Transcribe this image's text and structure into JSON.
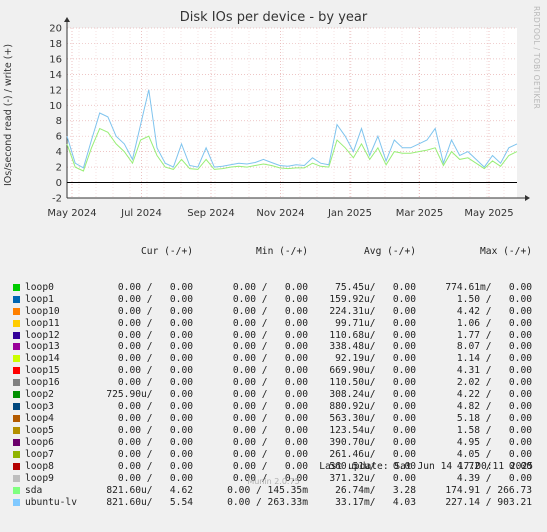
{
  "title": "Disk IOs per device - by year",
  "side_label": "RRDTOOL / TOBI OETIKER",
  "ylabel": "IOs/second read (-) / write (+)",
  "chart_data": {
    "type": "line",
    "title": "Disk IOs per device - by year",
    "ylabel": "IOs/second read (-) / write (+)",
    "ylim": [
      -2,
      20
    ],
    "yticks": [
      -2,
      0,
      2,
      4,
      6,
      8,
      10,
      12,
      14,
      16,
      18,
      20
    ],
    "xticks": [
      "May 2024",
      "Jul 2024",
      "Sep 2024",
      "Nov 2024",
      "Jan 2025",
      "Mar 2025",
      "May 2025"
    ],
    "grid": true,
    "series": [
      {
        "name": "ubuntu-lv",
        "color": "#7fc4ee",
        "values": [
          6.0,
          2.5,
          1.9,
          5.5,
          9.0,
          8.5,
          6.0,
          5.0,
          3.0,
          7.5,
          12.0,
          4.5,
          2.5,
          2.0,
          5.0,
          2.2,
          2.0,
          4.5,
          2.0,
          2.1,
          2.3,
          2.5,
          2.4,
          2.6,
          3.0,
          2.6,
          2.2,
          2.1,
          2.3,
          2.2,
          3.2,
          2.5,
          2.3,
          7.5,
          6.0,
          4.0,
          7.0,
          3.5,
          6.0,
          2.8,
          5.5,
          4.5,
          4.5,
          5.0,
          5.5,
          7.0,
          2.5,
          5.5,
          3.5,
          4.0,
          3.0,
          2.0,
          3.5,
          2.5,
          4.5,
          5.0
        ]
      },
      {
        "name": "sda",
        "color": "#99ee77",
        "values": [
          5.0,
          2.0,
          1.5,
          4.5,
          7.0,
          6.5,
          5.0,
          4.0,
          2.5,
          5.5,
          6.0,
          3.5,
          2.0,
          1.7,
          3.0,
          1.8,
          1.7,
          3.0,
          1.7,
          1.8,
          2.0,
          2.1,
          2.0,
          2.2,
          2.4,
          2.2,
          1.9,
          1.8,
          1.9,
          1.9,
          2.5,
          2.1,
          2.0,
          5.5,
          4.5,
          3.2,
          5.0,
          3.0,
          4.5,
          2.3,
          4.0,
          3.8,
          3.8,
          4.0,
          4.2,
          4.5,
          2.2,
          4.0,
          3.0,
          3.2,
          2.5,
          1.8,
          2.8,
          2.1,
          3.5,
          4.0
        ]
      }
    ],
    "legend_header": {
      "cur": "Cur (-/+)",
      "min": "Min (-/+)",
      "avg": "Avg (-/+)",
      "max": "Max (-/+)"
    },
    "legend": [
      {
        "name": "loop0",
        "color": "#00cc00",
        "cur": "0.00 /   0.00",
        "min": "0.00 /   0.00",
        "avg": "75.45u/   0.00",
        "max": "774.61m/   0.00"
      },
      {
        "name": "loop1",
        "color": "#0066b3",
        "cur": "0.00 /   0.00",
        "min": "0.00 /   0.00",
        "avg": "159.92u/   0.00",
        "max": "1.50 /   0.00"
      },
      {
        "name": "loop10",
        "color": "#ff8000",
        "cur": "0.00 /   0.00",
        "min": "0.00 /   0.00",
        "avg": "224.31u/   0.00",
        "max": "4.42 /   0.00"
      },
      {
        "name": "loop11",
        "color": "#ffcc00",
        "cur": "0.00 /   0.00",
        "min": "0.00 /   0.00",
        "avg": "99.71u/   0.00",
        "max": "1.06 /   0.00"
      },
      {
        "name": "loop12",
        "color": "#330099",
        "cur": "0.00 /   0.00",
        "min": "0.00 /   0.00",
        "avg": "110.68u/   0.00",
        "max": "1.77 /   0.00"
      },
      {
        "name": "loop13",
        "color": "#990099",
        "cur": "0.00 /   0.00",
        "min": "0.00 /   0.00",
        "avg": "338.48u/   0.00",
        "max": "8.07 /   0.00"
      },
      {
        "name": "loop14",
        "color": "#ccff00",
        "cur": "0.00 /   0.00",
        "min": "0.00 /   0.00",
        "avg": "92.19u/   0.00",
        "max": "1.14 /   0.00"
      },
      {
        "name": "loop15",
        "color": "#ff0000",
        "cur": "0.00 /   0.00",
        "min": "0.00 /   0.00",
        "avg": "669.90u/   0.00",
        "max": "4.31 /   0.00"
      },
      {
        "name": "loop16",
        "color": "#808080",
        "cur": "0.00 /   0.00",
        "min": "0.00 /   0.00",
        "avg": "110.50u/   0.00",
        "max": "2.02 /   0.00"
      },
      {
        "name": "loop2",
        "color": "#008f00",
        "cur": "725.90u/   0.00",
        "min": "0.00 /   0.00",
        "avg": "308.24u/   0.00",
        "max": "4.22 /   0.00"
      },
      {
        "name": "loop3",
        "color": "#00487d",
        "cur": "0.00 /   0.00",
        "min": "0.00 /   0.00",
        "avg": "880.92u/   0.00",
        "max": "4.82 /   0.00"
      },
      {
        "name": "loop4",
        "color": "#b35a00",
        "cur": "0.00 /   0.00",
        "min": "0.00 /   0.00",
        "avg": "563.30u/   0.00",
        "max": "5.18 /   0.00"
      },
      {
        "name": "loop5",
        "color": "#b38f00",
        "cur": "0.00 /   0.00",
        "min": "0.00 /   0.00",
        "avg": "123.54u/   0.00",
        "max": "1.58 /   0.00"
      },
      {
        "name": "loop6",
        "color": "#6b006b",
        "cur": "0.00 /   0.00",
        "min": "0.00 /   0.00",
        "avg": "390.70u/   0.00",
        "max": "4.95 /   0.00"
      },
      {
        "name": "loop7",
        "color": "#8fb300",
        "cur": "0.00 /   0.00",
        "min": "0.00 /   0.00",
        "avg": "261.46u/   0.00",
        "max": "4.05 /   0.00"
      },
      {
        "name": "loop8",
        "color": "#b30000",
        "cur": "0.00 /   0.00",
        "min": "0.00 /   0.00",
        "avg": "560.51u/   0.00",
        "max": "4.72 /   0.00"
      },
      {
        "name": "loop9",
        "color": "#bebebe",
        "cur": "0.00 /   0.00",
        "min": "0.00 /   0.00",
        "avg": "371.32u/   0.00",
        "max": "4.39 /   0.00"
      },
      {
        "name": "sda",
        "color": "#80ff80",
        "cur": "821.60u/   4.62",
        "min": "0.00 / 145.35m",
        "avg": "26.74m/   3.28",
        "max": "174.91 / 266.73"
      },
      {
        "name": "ubuntu-lv",
        "color": "#80c9ff",
        "cur": "821.60u/   5.54",
        "min": "0.00 / 263.33m",
        "avg": "33.17m/   4.03",
        "max": "227.14 / 903.21"
      }
    ]
  },
  "last_update": "Last update: Sat Jun 14 17:00:11 2025",
  "version": "Munin 2.0.75"
}
